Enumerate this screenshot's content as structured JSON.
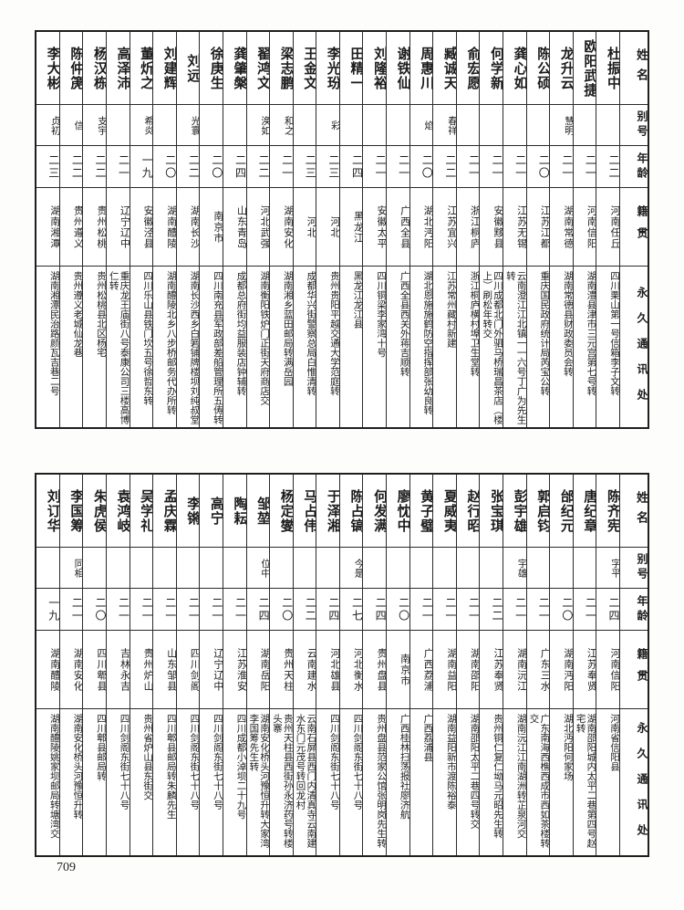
{
  "page": {
    "number": "709"
  },
  "headers": {
    "name": "姓名",
    "alias": "别号",
    "age": "年龄",
    "native": "籍贯",
    "address": "永久通讯处"
  },
  "tables": [
    {
      "id": "top",
      "people": [
        {
          "name": "杜振中",
          "alias": "",
          "age": "二二",
          "native": "河南任丘",
          "address": "四川栗山第一号信箱李子文转"
        },
        {
          "name": "欧阳武捷",
          "alias": "",
          "age": "二一",
          "native": "河南信阳",
          "address": "湖南澧县津市三元宫第七号转"
        },
        {
          "name": "龙升云",
          "alias": "慧明",
          "age": "二一",
          "native": "湖南常德",
          "address": "湖南常德县财政委员会转"
        },
        {
          "name": "陈公硕",
          "alias": "",
          "age": "二〇",
          "native": "江苏江都",
          "address": "重庆国民政府统计局芮宝公转"
        },
        {
          "name": "龚心如",
          "alias": "",
          "age": "二一",
          "native": "江苏无锡",
          "address": "云南澄江江北镇一一六号丁广为先生转"
        },
        {
          "name": "何学新",
          "alias": "",
          "age": "二一",
          "native": "安徽黟县",
          "address": "四川成都北门外驷马桥瑞昌茶店（楼上）刷松年转交"
        },
        {
          "name": "俞宏愿",
          "alias": "",
          "age": "二一",
          "native": "浙江桐庐",
          "address": "浙江桐庐横村埠卫生堂转"
        },
        {
          "name": "臧诚天",
          "alias": "春祥",
          "age": "二二",
          "native": "江苏宜兴",
          "address": "江苏常州藏村新建"
        },
        {
          "name": "周惠川",
          "alias": "焰",
          "age": "二〇",
          "native": "湖北沔阳",
          "address": "湖北恩施施鹤防空指挥部张幼良转"
        },
        {
          "name": "谢铁仙",
          "alias": "",
          "age": "二一",
          "native": "广西全县",
          "address": "广西全县西关外蒋吉顺转"
        },
        {
          "name": "刘隆裕",
          "alias": "",
          "age": "二一",
          "native": "安徽太平",
          "address": "四川铜梁李家湾十号"
        },
        {
          "name": "田精一",
          "alias": "",
          "age": "二四",
          "native": "黑龙江",
          "address": "黑龙江龙江县"
        },
        {
          "name": "李光玢",
          "alias": "彩",
          "age": "二三",
          "native": "河北",
          "address": "贵州贵阳平越交通大学范庭转"
        },
        {
          "name": "王金文",
          "alias": "",
          "age": "二三",
          "native": "河北",
          "address": "成都华兴街警察总局白惟清转"
        },
        {
          "name": "梁志鹏",
          "alias": "和之",
          "age": "二一",
          "native": "湖南安化",
          "address": "湖南湘乡蓝田邮局转满岳园"
        },
        {
          "name": "翟鸿文",
          "alias": "涣如",
          "age": "二二",
          "native": "河北武强",
          "address": "湖南衡阳铁炉门正街天府商店交"
        },
        {
          "name": "龚肇槃",
          "alias": "",
          "age": "二四",
          "native": "山东青岛",
          "address": "成都总府街均益服装店钟辅转"
        },
        {
          "name": "徐庚生",
          "alias": "",
          "age": "二〇",
          "native": "南京市",
          "address": "四川南充县军政部差船管理所五俦转"
        },
        {
          "name": "刘远",
          "alias": "光寰",
          "age": "二二",
          "native": "湖南长沙",
          "address": "湖南长沙西乡白箬铺牌楼坝刘纯叔堂"
        },
        {
          "name": "刘建辉",
          "alias": "",
          "age": "二〇",
          "native": "湖南醴陵",
          "address": "湖南醴陵北乡八步桥邮务代办所转"
        },
        {
          "name": "董炘之",
          "alias": "希炎",
          "age": "一九",
          "native": "安徽泾县",
          "address": "四川乐山县铁门坎五号徐哲东转"
        },
        {
          "name": "高泽沛",
          "alias": "",
          "age": "二一",
          "native": "辽宁辽中",
          "address": "重庆龙王庙街八号泰康公司三楼高博仁转"
        },
        {
          "name": "杨汉栋",
          "alias": "支宇",
          "age": "二二",
          "native": "贵州松桃",
          "address": "贵州松桃县北区杨宅"
        },
        {
          "name": "陈仲箎",
          "alias": "信",
          "age": "二二",
          "native": "贵州遵义",
          "address": "贵州遵义老城仙龙巷"
        },
        {
          "name": "李大彬",
          "alias": "贞初",
          "age": "二三",
          "native": "湖南湘潭",
          "address": "湖南湘潭民治路颜瓦吉巷二号"
        }
      ]
    },
    {
      "id": "bottom",
      "people": [
        {
          "name": "陈齐宪",
          "alias": "字平",
          "age": "二四",
          "native": "河南信阳",
          "address": "河南省信阳县"
        },
        {
          "name": "唐纪章",
          "alias": "",
          "age": "二一",
          "native": "江苏奉贤",
          "address": "湖南邵阳城内太平二巷第四号赵宅转"
        },
        {
          "name": "邰纪元",
          "alias": "",
          "age": "二〇",
          "native": "湖南沔阳",
          "address": "湖北沔阳何家场"
        },
        {
          "name": "郭启钧",
          "alias": "",
          "age": "二一",
          "native": "广东三水",
          "address": "广东南海西樵西成市西如茶楼转交"
        },
        {
          "name": "彭宇雄",
          "alias": "宇雄",
          "age": "二一",
          "native": "湖南沅江",
          "address": "湖南沅江江南湖洲转芷泉河交"
        },
        {
          "name": "张宝琪",
          "alias": "",
          "age": "二二",
          "native": "江苏奉贤",
          "address": "贵州铜仁复仁坳马元昭先生转"
        },
        {
          "name": "赵行昭",
          "alias": "",
          "age": "二一",
          "native": "湖南邵阳",
          "address": "湖南邵阳太平二巷四号转交"
        },
        {
          "name": "夏威夷",
          "alias": "",
          "age": "二一",
          "native": "湖南益阳",
          "address": "湖南益阳新市渡陈裕泰"
        },
        {
          "name": "黄子璧",
          "alias": "",
          "age": "二一",
          "native": "广西荔浦",
          "address": "广西荔浦县"
        },
        {
          "name": "廖忱中",
          "alias": "",
          "age": "二〇",
          "native": "南京市",
          "address": "广西桂林扫荡报社廖济航"
        },
        {
          "name": "何发满",
          "alias": "",
          "age": "二四",
          "native": "贵州盘县",
          "address": "贵州盘县范家公馆张明岗先生转"
        },
        {
          "name": "陈占镐",
          "alias": "今是",
          "age": "二七",
          "native": "河北衡水",
          "address": "四川剑阁东街七十八号"
        },
        {
          "name": "于泽湘",
          "alias": "",
          "age": "二四",
          "native": "河北雄县",
          "address": "四川剑阁东街七十八号"
        },
        {
          "name": "马占伟",
          "alias": "",
          "age": "二二",
          "native": "云南建水",
          "address": "云南石屏县西门内清真寺云南建水东门元茂号转回龙村"
        },
        {
          "name": "杨定燮",
          "alias": "",
          "age": "二〇",
          "native": "贵州天柱",
          "address": "贵州天柱县西街孙永济药号转楼头寨"
        },
        {
          "name": "邹堃",
          "alias": "位中",
          "age": "二四",
          "native": "湖南岳阳",
          "address": "湖南安化桥头河豫恒升转大家湾李国筹先生转"
        },
        {
          "name": "陶耘",
          "alias": "",
          "age": "二一",
          "native": "江苏淮安",
          "address": "四川成都小淖坝二十九号"
        },
        {
          "name": "高宁",
          "alias": "",
          "age": "二一",
          "native": "辽宁辽中",
          "address": "四川剑阁东街七十八号"
        },
        {
          "name": "李锵",
          "alias": "",
          "age": "二一",
          "native": "四川剑阁",
          "address": "四川剑阁东街七十八号"
        },
        {
          "name": "孟庆霖",
          "alias": "",
          "age": "二一",
          "native": "山东邹县",
          "address": "四川郫县邮局转朱麟先生"
        },
        {
          "name": "吴学礼",
          "alias": "",
          "age": "二一",
          "native": "贵州炉山",
          "address": "贵州省炉山县东街交"
        },
        {
          "name": "袁鸿岐",
          "alias": "",
          "age": "二一",
          "native": "吉林永吉",
          "address": "四川剑阁东街七十八号"
        },
        {
          "name": "朱虎侯",
          "alias": "",
          "age": "二〇",
          "native": "四川郫县",
          "address": "四川郫县邮局转"
        },
        {
          "name": "李国筹",
          "alias": "同相",
          "age": "二一",
          "native": "湖南安化",
          "address": "湖南安化桥头河豫恒升转"
        },
        {
          "name": "刘订华",
          "alias": "",
          "age": "一九",
          "native": "湖南醴陵",
          "address": "湖南醴陵姚家坝邮局转塘湾交"
        }
      ]
    }
  ]
}
